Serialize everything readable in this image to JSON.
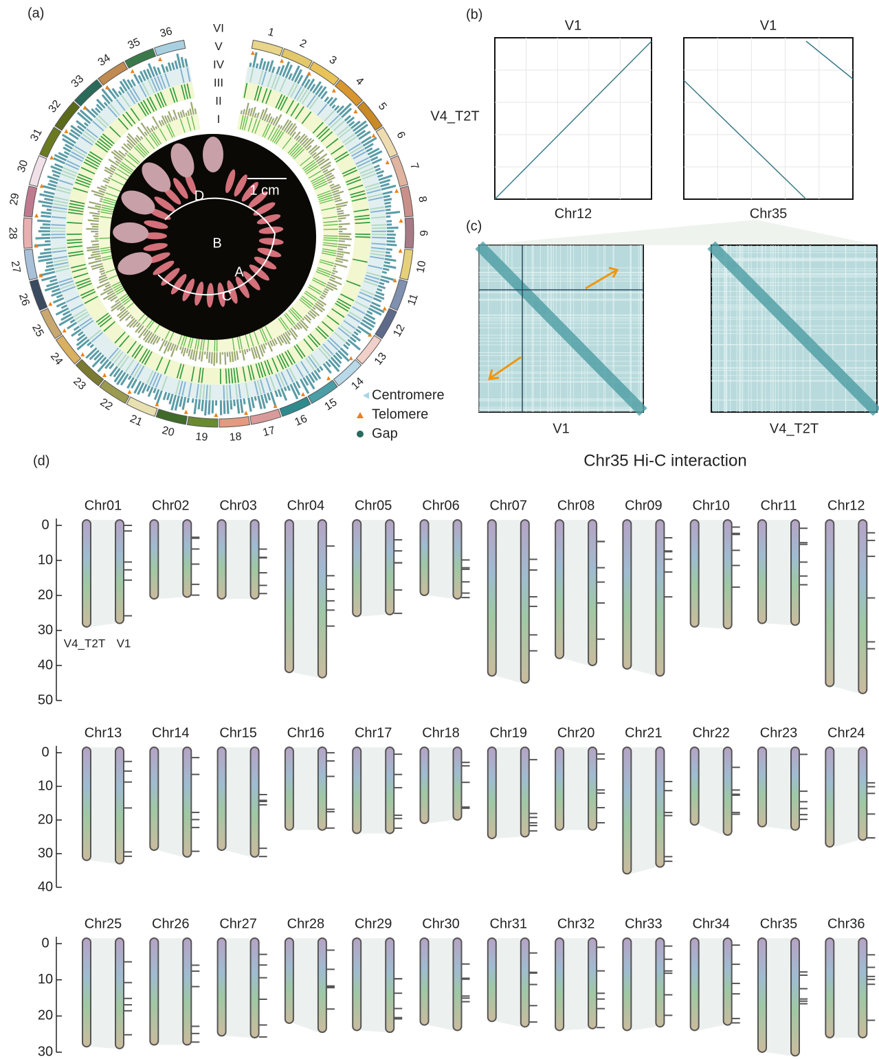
{
  "panels": {
    "a": {
      "label": "(a)",
      "chromosomes": [
        "1",
        "2",
        "3",
        "4",
        "5",
        "6",
        "7",
        "8",
        "9",
        "10",
        "11",
        "12",
        "13",
        "14",
        "15",
        "16",
        "17",
        "18",
        "19",
        "20",
        "21",
        "22",
        "23",
        "24",
        "25",
        "26",
        "27",
        "28",
        "29",
        "30",
        "31",
        "32",
        "33",
        "34",
        "35",
        "36"
      ],
      "tracks": [
        "VI",
        "V",
        "IV",
        "III",
        "II",
        "I"
      ],
      "scale_bar": "1 cm",
      "organ_labels": [
        "A",
        "B",
        "C",
        "D"
      ],
      "legend": [
        "Centromere",
        "Telomere",
        "Gap"
      ]
    },
    "b": {
      "label": "(b)",
      "y_label": "V4_T2T",
      "plots": [
        {
          "title": "V1",
          "x_label": "Chr12"
        },
        {
          "title": "V1",
          "x_label": "Chr35"
        }
      ]
    },
    "c": {
      "label": "(c)",
      "title": "Chr35 Hi-C interaction",
      "plots": [
        {
          "x_label": "V1"
        },
        {
          "x_label": "V4_T2T"
        }
      ]
    },
    "d": {
      "label": "(d)",
      "assembly_labels": [
        "V4_T2T",
        "V1"
      ],
      "rows": [
        {
          "yticks": [
            0,
            10,
            20,
            30,
            40,
            50
          ],
          "chromosomes": [
            {
              "name": "Chr01",
              "V4_T2T": 29,
              "V1": 28
            },
            {
              "name": "Chr02",
              "V4_T2T": 21,
              "V1": 20.5
            },
            {
              "name": "Chr03",
              "V4_T2T": 21,
              "V1": 21
            },
            {
              "name": "Chr04",
              "V4_T2T": 42,
              "V1": 43.5
            },
            {
              "name": "Chr05",
              "V4_T2T": 26,
              "V1": 25.5
            },
            {
              "name": "Chr06",
              "V4_T2T": 20,
              "V1": 21
            },
            {
              "name": "Chr07",
              "V4_T2T": 43,
              "V1": 45
            },
            {
              "name": "Chr08",
              "V4_T2T": 38,
              "V1": 40
            },
            {
              "name": "Chr09",
              "V4_T2T": 41,
              "V1": 43
            },
            {
              "name": "Chr10",
              "V4_T2T": 29,
              "V1": 29.5
            },
            {
              "name": "Chr11",
              "V4_T2T": 28,
              "V1": 28.5
            },
            {
              "name": "Chr12",
              "V4_T2T": 46,
              "V1": 48
            }
          ]
        },
        {
          "yticks": [
            0,
            10,
            20,
            30,
            40
          ],
          "chromosomes": [
            {
              "name": "Chr13",
              "V4_T2T": 32,
              "V1": 33
            },
            {
              "name": "Chr14",
              "V4_T2T": 29,
              "V1": 31
            },
            {
              "name": "Chr15",
              "V4_T2T": 29,
              "V1": 31
            },
            {
              "name": "Chr16",
              "V4_T2T": 23,
              "V1": 23
            },
            {
              "name": "Chr17",
              "V4_T2T": 24,
              "V1": 24
            },
            {
              "name": "Chr18",
              "V4_T2T": 21,
              "V1": 20
            },
            {
              "name": "Chr19",
              "V4_T2T": 25.5,
              "V1": 25
            },
            {
              "name": "Chr20",
              "V4_T2T": 23,
              "V1": 23
            },
            {
              "name": "Chr21",
              "V4_T2T": 36,
              "V1": 34
            },
            {
              "name": "Chr22",
              "V4_T2T": 21.5,
              "V1": 24.5
            },
            {
              "name": "Chr23",
              "V4_T2T": 22,
              "V1": 23
            },
            {
              "name": "Chr24",
              "V4_T2T": 28,
              "V1": 26
            }
          ]
        },
        {
          "yticks": [
            0,
            10,
            20,
            30
          ],
          "chromosomes": [
            {
              "name": "Chr25",
              "V4_T2T": 28.5,
              "V1": 29
            },
            {
              "name": "Chr26",
              "V4_T2T": 28,
              "V1": 28
            },
            {
              "name": "Chr27",
              "V4_T2T": 25.5,
              "V1": 26
            },
            {
              "name": "Chr28",
              "V4_T2T": 22,
              "V1": 24.5
            },
            {
              "name": "Chr29",
              "V4_T2T": 24,
              "V1": 24.5
            },
            {
              "name": "Chr30",
              "V4_T2T": 22.5,
              "V1": 24
            },
            {
              "name": "Chr31",
              "V4_T2T": 21.5,
              "V1": 23
            },
            {
              "name": "Chr32",
              "V4_T2T": 24,
              "V1": 23.5
            },
            {
              "name": "Chr33",
              "V4_T2T": 24,
              "V1": 23
            },
            {
              "name": "Chr34",
              "V4_T2T": 24,
              "V1": 22.5
            },
            {
              "name": "Chr35",
              "V4_T2T": 30,
              "V1": 31
            },
            {
              "name": "Chr36",
              "V4_T2T": 26,
              "V1": 26
            }
          ]
        }
      ]
    }
  }
}
